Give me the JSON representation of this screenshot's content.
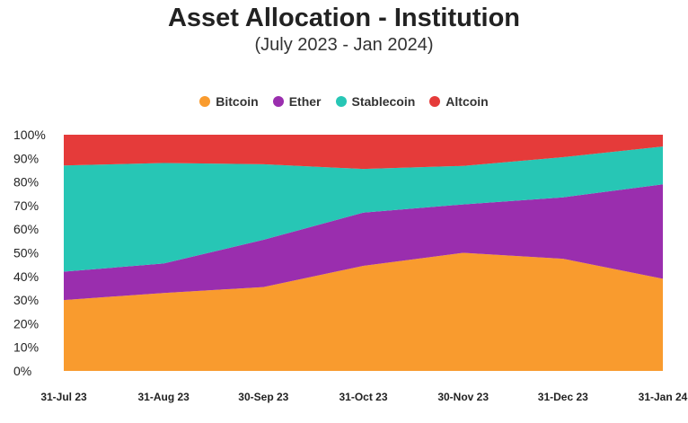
{
  "chart_data": {
    "type": "area",
    "stacked": true,
    "normalized": true,
    "title": "Asset Allocation - Institution",
    "subtitle": "(July 2023 - Jan 2024)",
    "categories": [
      "31-Jul 23",
      "31-Aug 23",
      "30-Sep 23",
      "31-Oct 23",
      "30-Nov 23",
      "31-Dec 23",
      "31-Jan 24"
    ],
    "yticks": [
      "0%",
      "10%",
      "20%",
      "30%",
      "40%",
      "50%",
      "60%",
      "70%",
      "80%",
      "90%",
      "100%"
    ],
    "ylim": [
      0,
      100
    ],
    "legend_position": "top-center",
    "grid": false,
    "series": [
      {
        "name": "Bitcoin",
        "color": "#F99B2E",
        "values": [
          30,
          33,
          35.5,
          44.5,
          50,
          47.5,
          39
        ]
      },
      {
        "name": "Ether",
        "color": "#9A2EAE",
        "values": [
          12,
          12.5,
          20,
          22.5,
          20.5,
          26,
          40
        ]
      },
      {
        "name": "Stablecoin",
        "color": "#27C6B5",
        "values": [
          45,
          42.5,
          32,
          18.5,
          16.3,
          17,
          16
        ]
      },
      {
        "name": "Altcoin",
        "color": "#E53B3A",
        "values": [
          13,
          12,
          12.5,
          14.5,
          13.2,
          9.5,
          5
        ]
      }
    ]
  }
}
